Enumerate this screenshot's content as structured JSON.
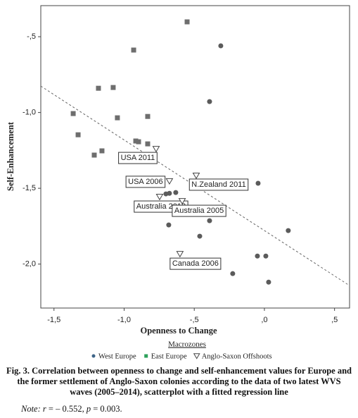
{
  "chart_data": {
    "type": "scatter",
    "x_label": "Openness to Change",
    "y_label": "Self-Enhancement",
    "xlim": [
      -1.594,
      0.607
    ],
    "ylim": [
      -2.29,
      -0.295
    ],
    "xticks": [
      {
        "value": -1.5,
        "label": "-1,5"
      },
      {
        "value": -1.0,
        "label": "-1,0"
      },
      {
        "value": -0.5,
        "label": "-,5"
      },
      {
        "value": 0,
        "label": ",0"
      },
      {
        "value": 0.5,
        "label": ",5"
      }
    ],
    "yticks": [
      {
        "value": -0.5,
        "label": "-,5"
      },
      {
        "value": -1.0,
        "label": "-1,0"
      },
      {
        "value": -1.5,
        "label": "-1,5"
      },
      {
        "value": -2.0,
        "label": "-2,0"
      }
    ],
    "legend_title": "Macrozones",
    "series": [
      {
        "name": "West Europe",
        "marker": "circle",
        "color": "#5b5b5b",
        "legend_color": "#3e6488",
        "x": [
          -0.311,
          -0.391,
          -0.677,
          -0.632,
          -0.702,
          -0.045,
          -0.391,
          -0.682,
          -0.461,
          0.17,
          -0.05,
          0.01,
          -0.226,
          0.03
        ],
        "y": [
          -0.56,
          -0.928,
          -1.533,
          -1.528,
          -1.537,
          -1.467,
          -1.714,
          -1.742,
          -1.816,
          -1.779,
          -1.947,
          -1.947,
          -2.063,
          -2.119
        ]
      },
      {
        "name": "East Europe",
        "marker": "square",
        "color": "#6e6e6e",
        "legend_color": "#2ca05a",
        "x": [
          -0.551,
          -0.932,
          -1.183,
          -1.078,
          -1.363,
          -1.048,
          -0.832,
          -1.328,
          -0.917,
          -0.897,
          -0.832,
          -1.158,
          -1.213
        ],
        "y": [
          -0.402,
          -0.588,
          -0.84,
          -0.835,
          -1.007,
          -1.035,
          -1.026,
          -1.147,
          -1.188,
          -1.193,
          -1.207,
          -1.253,
          -1.281
        ]
      },
      {
        "name": "Anglo-Saxon Offshoots",
        "marker": "triangle-down",
        "color": "#444444",
        "legend_color": "#444444",
        "x": [
          -0.772,
          -0.677,
          -0.486,
          -0.747,
          -0.586,
          -0.602
        ],
        "y": [
          -1.24,
          -1.453,
          -1.416,
          -1.556,
          -1.584,
          -1.933
        ],
        "labels": [
          "USA 2011",
          "USA 2006",
          "N.Zealand 2011",
          "Australia 2012",
          "Australia 2005",
          "Canada 2006"
        ]
      }
    ],
    "fit": {
      "slope": -0.598,
      "intercept": -1.779,
      "color": "#666666"
    }
  },
  "caption": "Fig. 3. Correlation between openness to change and self-enhancement values for Europe and the former settlement of Anglo-Saxon colonies according to the data of two latest WVS waves (2005–2014), scatterplot with a fitted regression line",
  "note": [
    "Note:",
    "r",
    " = – 0.552, ",
    "p",
    " = 0.003."
  ]
}
